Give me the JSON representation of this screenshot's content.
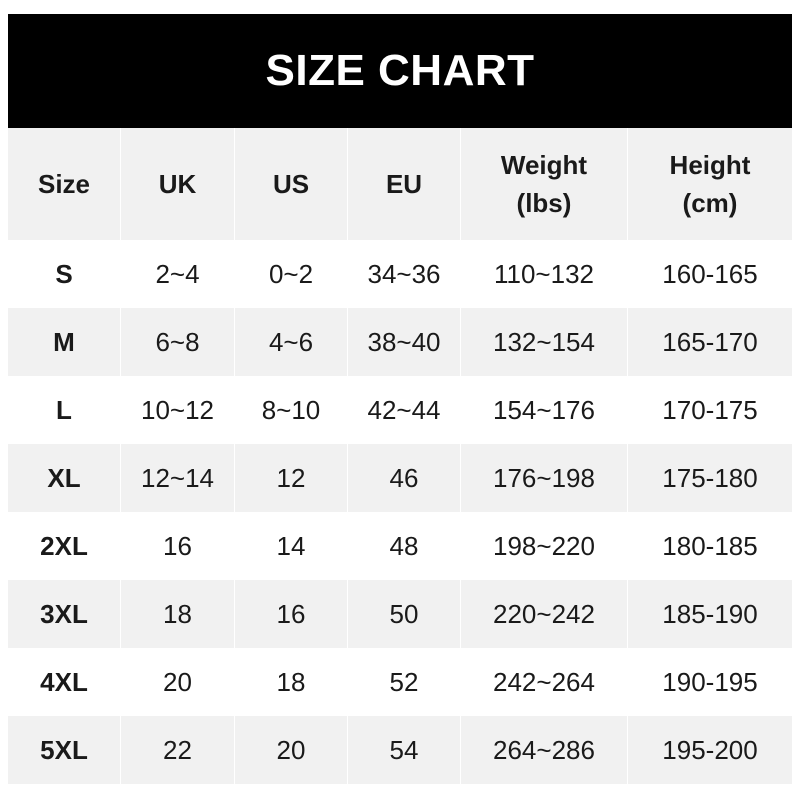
{
  "title": "SIZE CHART",
  "table": {
    "headers": [
      "Size",
      "UK",
      "US",
      "EU",
      "Weight\n(lbs)",
      "Height\n(cm)"
    ],
    "rows": [
      [
        "S",
        "2~4",
        "0~2",
        "34~36",
        "110~132",
        "160-165"
      ],
      [
        "M",
        "6~8",
        "4~6",
        "38~40",
        "132~154",
        "165-170"
      ],
      [
        "L",
        "10~12",
        "8~10",
        "42~44",
        "154~176",
        "170-175"
      ],
      [
        "XL",
        "12~14",
        "12",
        "46",
        "176~198",
        "175-180"
      ],
      [
        "2XL",
        "16",
        "14",
        "48",
        "198~220",
        "180-185"
      ],
      [
        "3XL",
        "18",
        "16",
        "50",
        "220~242",
        "185-190"
      ],
      [
        "4XL",
        "20",
        "18",
        "52",
        "242~264",
        "190-195"
      ],
      [
        "5XL",
        "22",
        "20",
        "54",
        "264~286",
        "195-200"
      ]
    ]
  },
  "colors": {
    "header_bg": "#000000",
    "stripe_bg": "#f1f1f1",
    "text": "#1a1a1a"
  }
}
